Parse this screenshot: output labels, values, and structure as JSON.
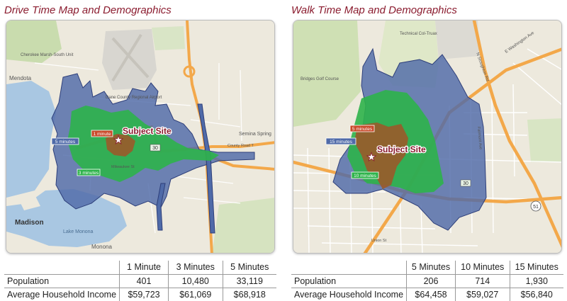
{
  "drive": {
    "title": "Drive Time Map and Demographics",
    "map_labels": {
      "cherokee": "Cherokee Marsh-South Unit",
      "mendota": "Mendota",
      "airport": "Dane County Regional Airport",
      "madison": "Madison",
      "lake_monona": "Lake Monona",
      "monona": "Monona",
      "seminole": "Semina Spring",
      "county_road": "County Road T",
      "milwaukee": "Milwaukee St",
      "subject": "Subject Site",
      "band_5": "5 minutes",
      "band_3": "3 minutes",
      "band_1": "1 minute",
      "route_30": "30"
    },
    "table": {
      "columns": [
        "",
        "1 Minute",
        "3 Minutes",
        "5 Minutes"
      ],
      "rows": [
        {
          "label": "Population",
          "values": [
            "401",
            "10,480",
            "33,119"
          ]
        },
        {
          "label": "Average Household Income",
          "values": [
            "$59,723",
            "$61,069",
            "$68,918"
          ]
        }
      ]
    }
  },
  "walk": {
    "title": "Walk Time Map and Demographics",
    "map_labels": {
      "technical": "Technical Col-Truax",
      "bridges": "Bridges Golf Course",
      "washington": "E Washington Ave",
      "stoughton": "N Stoughton Rd",
      "fairmont": "Fairmont Ave",
      "union": "Union St",
      "subject": "Subject Site",
      "band_15": "15 minutes",
      "band_10": "10 minutes",
      "band_5": "5 minutes",
      "route_30": "30",
      "route_51": "51"
    },
    "table": {
      "columns": [
        "",
        "5 Minutes",
        "10 Minutes",
        "15 Minutes"
      ],
      "rows": [
        {
          "label": "Population",
          "values": [
            "206",
            "714",
            "1,930"
          ]
        },
        {
          "label": "Average Household Income",
          "values": [
            "$64,458",
            "$59,027",
            "$56,840"
          ]
        }
      ]
    }
  },
  "colors": {
    "title": "#8b1c2f",
    "outer_band": "#4f6aa8",
    "middle_band": "#2db34a",
    "inner_band": "#9a5a2a",
    "water": "#a9c7e2",
    "land": "#ede9dd",
    "highway": "#f3a84a"
  }
}
